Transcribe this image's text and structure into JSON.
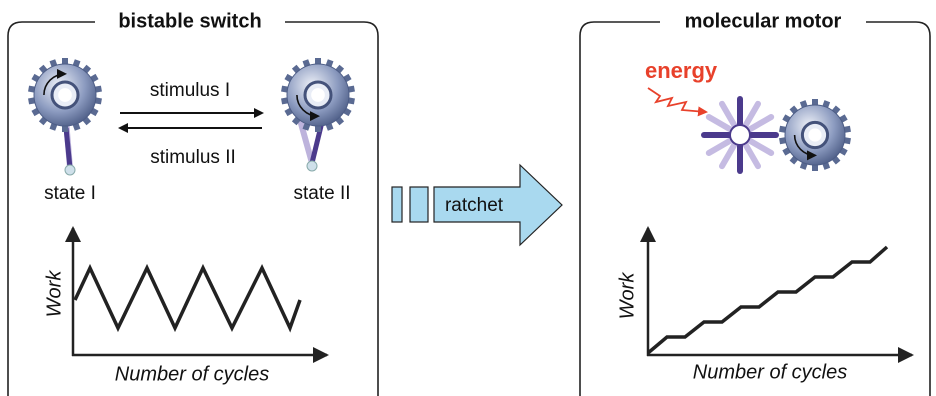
{
  "left_panel": {
    "title": "bistable switch",
    "stimuli": [
      "stimulus I",
      "stimulus II"
    ],
    "states": [
      "state I",
      "state II"
    ],
    "plot": {
      "y_label": "Work",
      "x_label": "Number of cycles"
    }
  },
  "arrow": {
    "label": "ratchet"
  },
  "right_panel": {
    "title": "molecular motor",
    "energy_label": "energy",
    "plot": {
      "y_label": "Work",
      "x_label": "Number of cycles"
    }
  }
}
